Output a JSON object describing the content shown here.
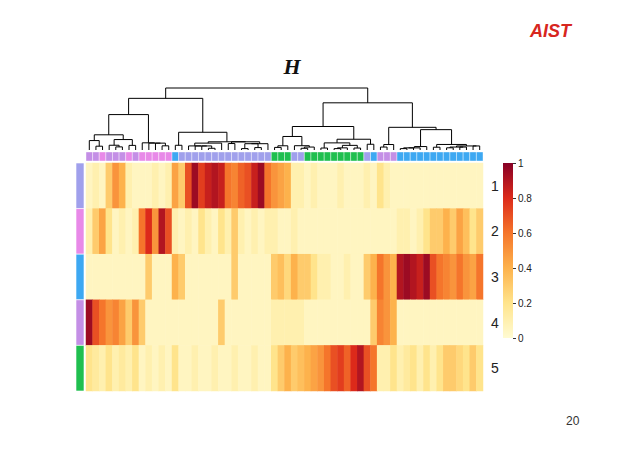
{
  "chart_data": {
    "type": "heatmap",
    "title": "H",
    "rows": [
      "1",
      "2",
      "3",
      "4",
      "5"
    ],
    "row_colors": [
      "#a0a0ec",
      "#e889e8",
      "#3da8f2",
      "#c48fe6",
      "#1fbf4f"
    ],
    "categories": [
      null,
      null,
      null,
      null,
      null,
      null,
      null,
      null,
      null,
      null,
      null,
      null,
      null,
      null,
      null,
      null,
      null,
      null,
      null,
      null,
      null,
      null,
      null,
      null,
      null,
      null,
      null,
      null,
      null,
      null,
      null,
      null,
      null,
      null,
      null,
      null,
      null,
      null,
      null,
      null,
      null,
      null,
      null,
      null,
      null,
      null,
      null,
      null,
      null,
      null,
      null,
      null,
      null,
      null,
      null,
      null,
      null,
      null,
      null,
      null
    ],
    "column_colors": [
      "#c48fe6",
      "#c48fe6",
      "#e889e8",
      "#c48fe6",
      "#c48fe6",
      "#c48fe6",
      "#e889e8",
      "#c48fe6",
      "#e889e8",
      "#e889e8",
      "#e889e8",
      "#e889e8",
      "#e889e8",
      "#3da8f2",
      "#a0a0ec",
      "#a0a0ec",
      "#a0a0ec",
      "#a0a0ec",
      "#a0a0ec",
      "#a0a0ec",
      "#a0a0ec",
      "#a0a0ec",
      "#a0a0ec",
      "#a0a0ec",
      "#a0a0ec",
      "#a0a0ec",
      "#a0a0ec",
      "#a0a0ec",
      "#1fbf4f",
      "#1fbf4f",
      "#1fbf4f",
      "#a0a0ec",
      "#a0a0ec",
      "#1fbf4f",
      "#1fbf4f",
      "#1fbf4f",
      "#1fbf4f",
      "#1fbf4f",
      "#1fbf4f",
      "#1fbf4f",
      "#1fbf4f",
      "#1fbf4f",
      "#a0a0ec",
      "#3da8f2",
      "#c48fe6",
      "#c48fe6",
      "#c48fe6",
      "#3da8f2",
      "#3da8f2",
      "#3da8f2",
      "#3da8f2",
      "#3da8f2",
      "#3da8f2",
      "#3da8f2",
      "#3da8f2",
      "#3da8f2",
      "#3da8f2",
      "#3da8f2",
      "#3da8f2",
      "#3da8f2"
    ],
    "values": [
      [
        0.05,
        0.1,
        0.05,
        0.3,
        0.5,
        0.4,
        0.1,
        0.05,
        0.05,
        0.05,
        0.1,
        0.05,
        0.1,
        0.45,
        0.3,
        0.7,
        0.95,
        0.75,
        0.85,
        0.9,
        0.85,
        0.6,
        0.55,
        0.65,
        0.7,
        0.85,
        0.95,
        0.6,
        0.5,
        0.45,
        0.4,
        0.1,
        0.1,
        0.05,
        0.1,
        0.05,
        0.05,
        0.05,
        0.1,
        0.05,
        0.05,
        0.05,
        0.1,
        0.05,
        0.2,
        0.1,
        0.05,
        0.05,
        0.05,
        0.05,
        0.05,
        0.05,
        0.05,
        0.05,
        0.05,
        0.05,
        0.05,
        0.05,
        0.05,
        0.05
      ],
      [
        0.1,
        0.3,
        0.45,
        0.2,
        0.05,
        0.1,
        0.05,
        0.1,
        0.6,
        0.8,
        0.5,
        0.9,
        0.7,
        0.1,
        0.05,
        0.1,
        0.05,
        0.2,
        0.1,
        0.05,
        0.2,
        0.1,
        0.3,
        0.1,
        0.05,
        0.1,
        0.05,
        0.1,
        0.1,
        0.05,
        0.05,
        0.1,
        0.05,
        0.05,
        0.05,
        0.05,
        0.05,
        0.05,
        0.05,
        0.05,
        0.05,
        0.05,
        0.05,
        0.05,
        0.05,
        0.05,
        0.05,
        0.1,
        0.1,
        0.05,
        0.1,
        0.2,
        0.3,
        0.3,
        0.4,
        0.3,
        0.45,
        0.35,
        0.2,
        0.3
      ],
      [
        0.05,
        0.05,
        0.05,
        0.05,
        0.05,
        0.05,
        0.05,
        0.05,
        0.05,
        0.3,
        0.05,
        0.05,
        0.05,
        0.4,
        0.3,
        0.05,
        0.05,
        0.05,
        0.05,
        0.05,
        0.05,
        0.05,
        0.3,
        0.05,
        0.05,
        0.05,
        0.05,
        0.05,
        0.3,
        0.35,
        0.25,
        0.4,
        0.3,
        0.3,
        0.2,
        0.1,
        0.1,
        0.05,
        0.05,
        0.1,
        0.05,
        0.05,
        0.3,
        0.4,
        0.6,
        0.5,
        0.4,
        0.9,
        0.95,
        0.9,
        0.85,
        0.95,
        0.7,
        0.6,
        0.55,
        0.5,
        0.6,
        0.5,
        0.45,
        0.6
      ],
      [
        0.95,
        0.7,
        0.6,
        0.5,
        0.55,
        0.45,
        0.3,
        0.5,
        0.3,
        0.05,
        0.05,
        0.05,
        0.05,
        0.05,
        0.05,
        0.05,
        0.05,
        0.05,
        0.05,
        0.05,
        0.3,
        0.05,
        0.05,
        0.05,
        0.05,
        0.05,
        0.05,
        0.05,
        0.1,
        0.1,
        0.1,
        0.1,
        0.1,
        0.05,
        0.05,
        0.05,
        0.05,
        0.05,
        0.05,
        0.05,
        0.05,
        0.05,
        0.05,
        0.3,
        0.55,
        0.5,
        0.4,
        0.05,
        0.05,
        0.05,
        0.05,
        0.05,
        0.05,
        0.05,
        0.05,
        0.05,
        0.05,
        0.05,
        0.05,
        0.05
      ],
      [
        0.2,
        0.15,
        0.1,
        0.2,
        0.1,
        0.15,
        0.1,
        0.2,
        0.05,
        0.1,
        0.05,
        0.1,
        0.05,
        0.2,
        0.05,
        0.05,
        0.1,
        0.05,
        0.05,
        0.1,
        0.05,
        0.05,
        0.1,
        0.05,
        0.05,
        0.1,
        0.05,
        0.05,
        0.2,
        0.3,
        0.4,
        0.3,
        0.35,
        0.4,
        0.45,
        0.5,
        0.6,
        0.7,
        0.75,
        0.65,
        0.8,
        0.9,
        0.7,
        0.6,
        0.1,
        0.1,
        0.2,
        0.1,
        0.15,
        0.2,
        0.1,
        0.2,
        0.1,
        0.2,
        0.3,
        0.3,
        0.25,
        0.2,
        0.3,
        0.2
      ]
    ],
    "color_range": [
      0,
      1
    ],
    "color_ticks": [
      0,
      0.2,
      0.4,
      0.6,
      0.8,
      1
    ],
    "annotations": [
      "AIST",
      "20"
    ]
  }
}
